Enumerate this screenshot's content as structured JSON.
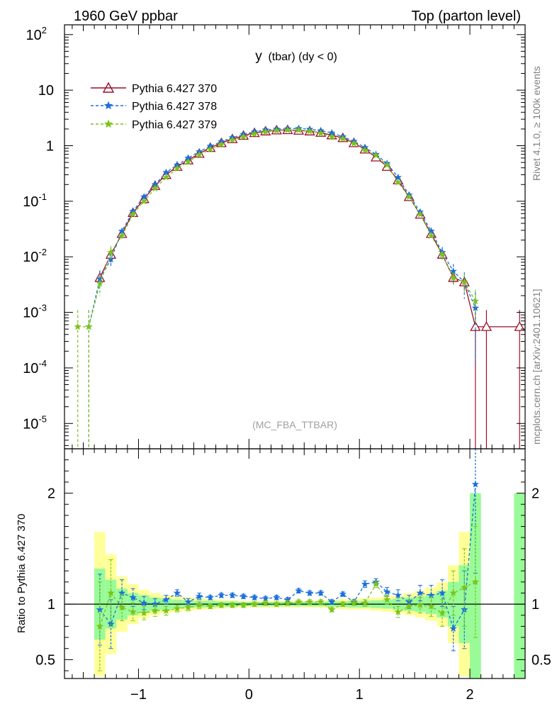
{
  "header": {
    "left_title": "1960 GeV ppbar",
    "right_title": "Top (parton level)"
  },
  "side_labels": {
    "rivet": "Rivet 4.1.0, ≥ 100k events",
    "mcplots": "mcplots.cern.ch [arXiv:2401.10621]"
  },
  "colors": {
    "s370": "#9a0f2a",
    "s378": "#1a6fdc",
    "s379": "#7cc31a",
    "band_green": "#98fb98",
    "band_yellow": "#ffff99"
  },
  "chart_data": [
    {
      "type": "line",
      "panel": "main",
      "title": "y (tbar) (dy < 0)",
      "title_main": "y",
      "title_rest": "(tbar) (dy < 0)",
      "watermark": "(MC_FBA_TTBAR)",
      "yscale": "log",
      "xlim": [
        -1.67,
        2.5
      ],
      "ylim": [
        3.5e-06,
        150
      ],
      "ytick_labels": [
        {
          "mant": "10",
          "exp": "-5",
          "v": 1e-05
        },
        {
          "mant": "10",
          "exp": "-4",
          "v": 0.0001
        },
        {
          "mant": "10",
          "exp": "-3",
          "v": 0.001
        },
        {
          "mant": "10",
          "exp": "-2",
          "v": 0.01
        },
        {
          "mant": "10",
          "exp": "-1",
          "v": 0.1
        },
        {
          "mant": "1",
          "exp": "",
          "v": 1
        },
        {
          "mant": "10",
          "exp": "",
          "v": 10
        },
        {
          "mant": "10",
          "exp": "2",
          "v": 100
        }
      ],
      "legend": [
        {
          "name": "Pythia 6.427 370",
          "marker": "triangle"
        },
        {
          "name": "Pythia 6.427 378",
          "marker": "star"
        },
        {
          "name": "Pythia 6.427 379",
          "marker": "star"
        }
      ],
      "series": [
        {
          "name": "Pythia 6.427 370",
          "x": [
            -1.35,
            -1.25,
            -1.15,
            -1.05,
            -0.95,
            -0.85,
            -0.75,
            -0.65,
            -0.55,
            -0.45,
            -0.35,
            -0.25,
            -0.15,
            -0.05,
            0.05,
            0.15,
            0.25,
            0.35,
            0.45,
            0.55,
            0.65,
            0.75,
            0.85,
            0.95,
            1.05,
            1.15,
            1.25,
            1.35,
            1.45,
            1.55,
            1.65,
            1.75,
            1.85,
            1.95,
            2.05,
            2.15,
            2.45
          ],
          "y": [
            0.0042,
            0.011,
            0.026,
            0.062,
            0.11,
            0.19,
            0.3,
            0.42,
            0.55,
            0.72,
            0.92,
            1.12,
            1.32,
            1.52,
            1.7,
            1.82,
            1.9,
            1.92,
            1.88,
            1.82,
            1.72,
            1.55,
            1.38,
            1.12,
            0.86,
            0.62,
            0.42,
            0.24,
            0.12,
            0.058,
            0.026,
            0.011,
            0.0042,
            0.0035,
            0.00055,
            0.00055,
            0.00055
          ],
          "yerr_frac": [
            0.35,
            0.28,
            0.12,
            0.06,
            0.04,
            0.03,
            0.02,
            0.02,
            0.02,
            0.02,
            0.02,
            0.02,
            0.02,
            0.02,
            0.02,
            0.02,
            0.02,
            0.02,
            0.02,
            0.02,
            0.02,
            0.02,
            0.02,
            0.02,
            0.02,
            0.02,
            0.02,
            0.03,
            0.04,
            0.06,
            0.1,
            0.15,
            0.25,
            0.3,
            1.0,
            1.0,
            1.0
          ]
        },
        {
          "name": "Pythia 6.427 378",
          "x": [
            -1.45,
            -1.35,
            -1.25,
            -1.15,
            -1.05,
            -0.95,
            -0.85,
            -0.75,
            -0.65,
            -0.55,
            -0.45,
            -0.35,
            -0.25,
            -0.15,
            -0.05,
            0.05,
            0.15,
            0.25,
            0.35,
            0.45,
            0.55,
            0.65,
            0.75,
            0.85,
            0.95,
            1.05,
            1.15,
            1.25,
            1.35,
            1.45,
            1.55,
            1.65,
            1.75,
            1.85,
            1.95,
            2.05
          ],
          "y": [
            0.00055,
            0.004,
            0.009,
            0.029,
            0.066,
            0.12,
            0.2,
            0.33,
            0.45,
            0.6,
            0.78,
            0.98,
            1.18,
            1.4,
            1.6,
            1.78,
            1.93,
            1.99,
            2.02,
            2.04,
            1.98,
            1.86,
            1.7,
            1.45,
            1.2,
            0.93,
            0.7,
            0.48,
            0.27,
            0.13,
            0.064,
            0.029,
            0.012,
            0.0055,
            0.0035,
            0.0012
          ],
          "yerr_frac": [
            1.0,
            0.4,
            0.3,
            0.12,
            0.06,
            0.04,
            0.03,
            0.02,
            0.02,
            0.02,
            0.02,
            0.02,
            0.02,
            0.02,
            0.02,
            0.02,
            0.02,
            0.02,
            0.02,
            0.02,
            0.02,
            0.02,
            0.02,
            0.02,
            0.02,
            0.02,
            0.02,
            0.03,
            0.04,
            0.06,
            0.1,
            0.15,
            0.25,
            0.35,
            0.5,
            0.9
          ]
        },
        {
          "name": "Pythia 6.427 379",
          "x": [
            -1.55,
            -1.45,
            -1.35,
            -1.25,
            -1.15,
            -1.05,
            -0.95,
            -0.85,
            -0.75,
            -0.65,
            -0.55,
            -0.45,
            -0.35,
            -0.25,
            -0.15,
            -0.05,
            0.05,
            0.15,
            0.25,
            0.35,
            0.45,
            0.55,
            0.65,
            0.75,
            0.85,
            0.95,
            1.05,
            1.15,
            1.25,
            1.35,
            1.45,
            1.55,
            1.65,
            1.75,
            1.85,
            1.95,
            2.05
          ],
          "y": [
            0.00055,
            0.00055,
            0.0033,
            0.012,
            0.024,
            0.058,
            0.1,
            0.17,
            0.27,
            0.39,
            0.51,
            0.69,
            0.86,
            1.05,
            1.27,
            1.45,
            1.63,
            1.78,
            1.87,
            1.91,
            1.91,
            1.82,
            1.68,
            1.45,
            1.34,
            1.1,
            0.83,
            0.67,
            0.45,
            0.22,
            0.12,
            0.058,
            0.024,
            0.011,
            0.0042,
            0.0035,
            0.0016
          ],
          "yerr_frac": [
            1.0,
            1.0,
            0.4,
            0.3,
            0.12,
            0.06,
            0.04,
            0.03,
            0.02,
            0.02,
            0.02,
            0.02,
            0.02,
            0.02,
            0.02,
            0.02,
            0.02,
            0.02,
            0.02,
            0.02,
            0.02,
            0.02,
            0.02,
            0.02,
            0.02,
            0.02,
            0.02,
            0.02,
            0.02,
            0.03,
            0.04,
            0.06,
            0.1,
            0.15,
            0.25,
            0.4,
            0.6
          ]
        }
      ]
    },
    {
      "type": "line",
      "panel": "ratio",
      "ylabel": "Ratio to Pythia 6.427 370",
      "xlim": [
        -1.67,
        2.5
      ],
      "ylim": [
        0.33,
        2.4
      ],
      "yticks": [
        0.5,
        1,
        2
      ],
      "ytick_labels": [
        "0.5",
        "1",
        "2"
      ],
      "xticks": [
        -1,
        0,
        1,
        2
      ],
      "xtick_labels": [
        "−1",
        "0",
        "1",
        "2"
      ],
      "reference": 1.0,
      "bands": {
        "x": [
          -1.35,
          -1.25,
          -1.15,
          -1.05,
          -0.95,
          -0.85,
          -0.75,
          -0.65,
          -0.55,
          -0.45,
          -0.35,
          -0.25,
          -0.15,
          -0.05,
          0.05,
          0.15,
          0.25,
          0.35,
          0.45,
          0.55,
          0.65,
          0.75,
          0.85,
          0.95,
          1.05,
          1.15,
          1.25,
          1.35,
          1.45,
          1.55,
          1.65,
          1.75,
          1.85,
          1.95,
          2.05,
          2.45
        ],
        "green_halfwidth": [
          0.32,
          0.22,
          0.14,
          0.1,
          0.08,
          0.06,
          0.05,
          0.04,
          0.035,
          0.03,
          0.03,
          0.025,
          0.025,
          0.02,
          0.02,
          0.02,
          0.02,
          0.02,
          0.02,
          0.02,
          0.02,
          0.025,
          0.025,
          0.03,
          0.03,
          0.035,
          0.04,
          0.05,
          0.06,
          0.07,
          0.09,
          0.12,
          0.2,
          0.35,
          1.0,
          1.0
        ],
        "yellow_halfwidth": [
          0.65,
          0.45,
          0.25,
          0.18,
          0.13,
          0.1,
          0.08,
          0.07,
          0.06,
          0.05,
          0.045,
          0.04,
          0.035,
          0.03,
          0.03,
          0.03,
          0.03,
          0.03,
          0.03,
          0.03,
          0.035,
          0.04,
          0.045,
          0.05,
          0.05,
          0.06,
          0.07,
          0.08,
          0.1,
          0.12,
          0.15,
          0.2,
          0.35,
          0.65,
          1.0,
          1.0
        ]
      },
      "series": [
        {
          "name": "Pythia 6.427 378",
          "x": [
            -1.35,
            -1.25,
            -1.15,
            -1.05,
            -0.95,
            -0.85,
            -0.75,
            -0.65,
            -0.55,
            -0.45,
            -0.35,
            -0.25,
            -0.15,
            -0.05,
            0.05,
            0.15,
            0.25,
            0.35,
            0.45,
            0.55,
            0.65,
            0.75,
            0.85,
            0.95,
            1.05,
            1.15,
            1.25,
            1.35,
            1.45,
            1.55,
            1.65,
            1.75,
            1.85,
            1.95,
            2.05
          ],
          "y": [
            0.95,
            0.82,
            1.1,
            1.06,
            1.01,
            1.0,
            1.04,
            1.1,
            1.02,
            1.07,
            1.06,
            1.08,
            1.08,
            1.07,
            1.06,
            1.05,
            1.06,
            1.04,
            1.12,
            1.1,
            1.1,
            1.02,
            1.09,
            1.02,
            1.18,
            1.2,
            1.11,
            1.08,
            1.02,
            1.1,
            1.08,
            1.1,
            0.78,
            0.95,
            2.08
          ],
          "yerr": [
            0.32,
            0.22,
            0.12,
            0.08,
            0.06,
            0.05,
            0.04,
            0.03,
            0.03,
            0.03,
            0.02,
            0.02,
            0.02,
            0.02,
            0.02,
            0.02,
            0.02,
            0.02,
            0.02,
            0.02,
            0.02,
            0.02,
            0.02,
            0.02,
            0.03,
            0.03,
            0.04,
            0.05,
            0.06,
            0.07,
            0.09,
            0.12,
            0.2,
            0.35,
            0.8
          ]
        },
        {
          "name": "Pythia 6.427 379",
          "x": [
            -1.35,
            -1.25,
            -1.15,
            -1.05,
            -0.95,
            -0.85,
            -0.75,
            -0.65,
            -0.55,
            -0.45,
            -0.35,
            -0.25,
            -0.15,
            -0.05,
            0.05,
            0.15,
            0.25,
            0.35,
            0.45,
            0.55,
            0.65,
            0.75,
            0.85,
            0.95,
            1.05,
            1.15,
            1.25,
            1.35,
            1.45,
            1.55,
            1.65,
            1.75,
            1.85,
            1.95,
            2.05
          ],
          "y": [
            0.8,
            1.1,
            0.97,
            0.93,
            0.92,
            0.94,
            0.94,
            0.96,
            0.97,
            0.99,
            0.98,
            0.99,
            0.99,
            0.99,
            1.0,
            1.01,
            1.0,
            1.01,
            1.02,
            1.02,
            1.02,
            0.95,
            1.0,
            1.01,
            1.01,
            1.18,
            1.04,
            0.93,
            0.98,
            0.99,
            0.98,
            0.92,
            1.1,
            1.15,
            1.2
          ],
          "yerr": [
            0.4,
            0.3,
            0.12,
            0.08,
            0.06,
            0.05,
            0.04,
            0.03,
            0.03,
            0.03,
            0.02,
            0.02,
            0.02,
            0.02,
            0.02,
            0.02,
            0.02,
            0.02,
            0.02,
            0.02,
            0.02,
            0.02,
            0.02,
            0.02,
            0.03,
            0.03,
            0.04,
            0.05,
            0.06,
            0.07,
            0.09,
            0.12,
            0.2,
            0.35,
            0.5
          ]
        }
      ]
    }
  ]
}
